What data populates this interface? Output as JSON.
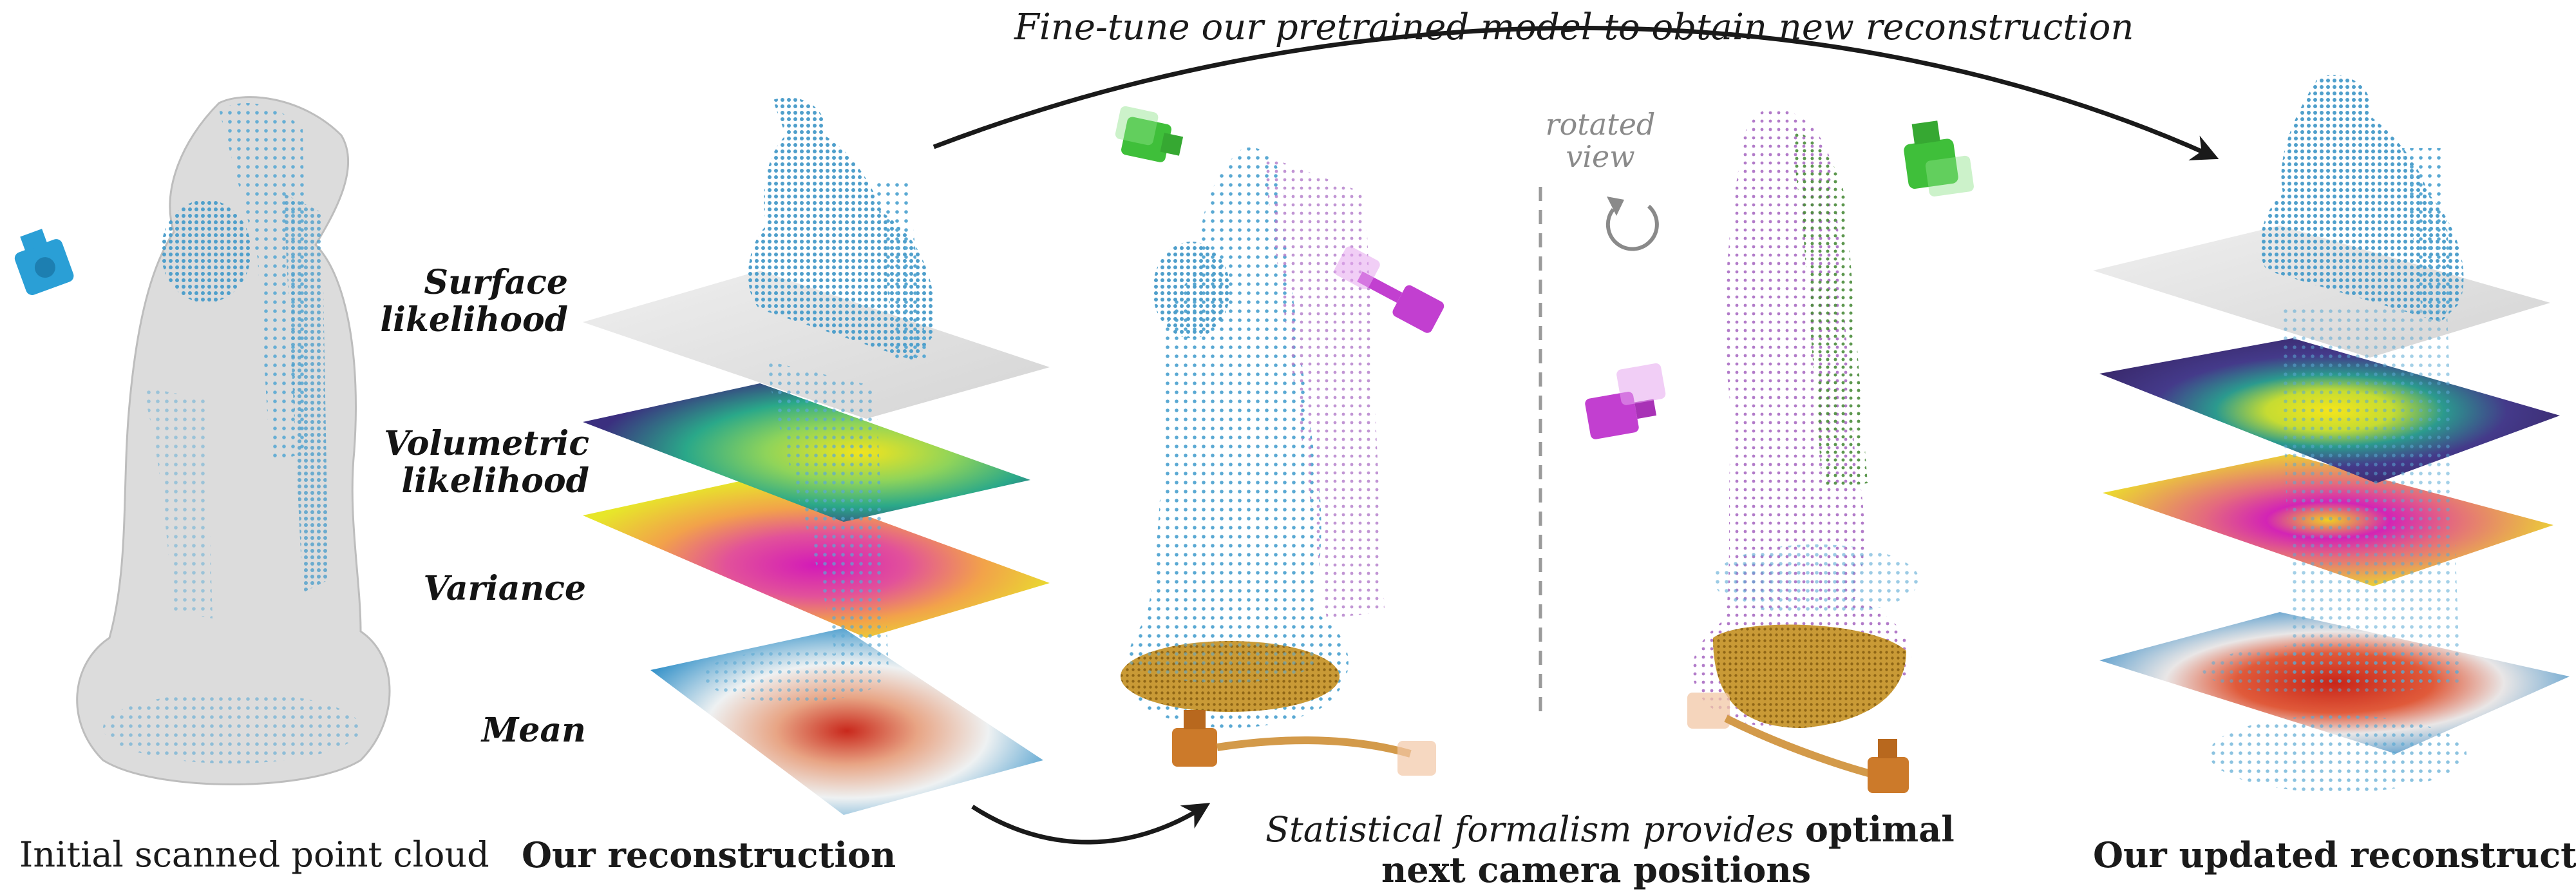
{
  "top_annotation": "Fine-tune our pretrained model to obtain new reconstruction",
  "panels": {
    "initial": {
      "caption": "Initial scanned point cloud"
    },
    "ours": {
      "caption": "Our reconstruction"
    },
    "nbv": {
      "caption_part1": "Statistical formalism provides",
      "caption_bold1": "optimal",
      "caption_line2": "next camera positions"
    },
    "updated": {
      "caption": "Our updated reconstruction"
    }
  },
  "layers": {
    "surface_1": "Surface",
    "surface_2": "likelihood",
    "volumetric_1": "Volumetric",
    "volumetric_2": "likelihood",
    "variance": "Variance",
    "mean": "Mean"
  },
  "rotated_view": {
    "line1": "rotated",
    "line2": "view"
  },
  "colors": {
    "point_blue": "#5ea9cf",
    "camera_blue": "#2a9fd6",
    "camera_green": "#3fbf3a",
    "camera_magenta": "#c23fd0",
    "camera_orange": "#cc7a2a",
    "arrow": "#1a1a1a",
    "divider": "#9a9a9a"
  },
  "icons": [
    "camera-icon",
    "rotate-arrow-icon"
  ]
}
